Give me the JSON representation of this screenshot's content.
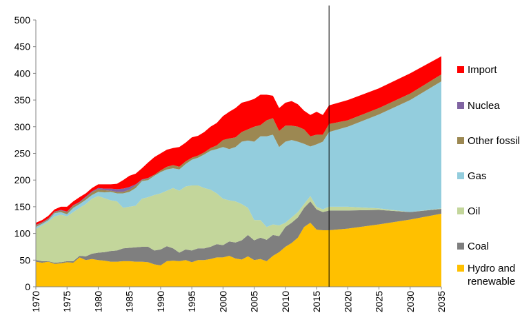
{
  "chart_data": {
    "type": "stacked_area",
    "x": [
      1970,
      1971,
      1972,
      1973,
      1974,
      1975,
      1976,
      1977,
      1978,
      1979,
      1980,
      1981,
      1982,
      1983,
      1984,
      1985,
      1986,
      1987,
      1988,
      1989,
      1990,
      1991,
      1992,
      1993,
      1994,
      1995,
      1996,
      1997,
      1998,
      1999,
      2000,
      2001,
      2002,
      2003,
      2004,
      2005,
      2006,
      2007,
      2008,
      2009,
      2010,
      2011,
      2012,
      2013,
      2014,
      2015,
      2016,
      2017,
      2020,
      2025,
      2030,
      2035
    ],
    "series": [
      {
        "name": "Hydro and renewable",
        "color": "#ffc000",
        "values": [
          47,
          45,
          47,
          43,
          44,
          46,
          45,
          55,
          50,
          52,
          50,
          49,
          47,
          47,
          48,
          48,
          47,
          47,
          46,
          42,
          40,
          48,
          49,
          48,
          50,
          46,
          50,
          50,
          52,
          55,
          55,
          58,
          53,
          51,
          57,
          50,
          52,
          48,
          58,
          65,
          75,
          82,
          92,
          112,
          120,
          107,
          106,
          106,
          109,
          117,
          126,
          137
        ]
      },
      {
        "name": "Coal",
        "color": "#7f7f7f",
        "values": [
          3,
          3,
          1,
          2,
          2,
          2,
          3,
          3,
          7,
          10,
          14,
          16,
          20,
          21,
          24,
          25,
          27,
          28,
          29,
          26,
          30,
          28,
          23,
          16,
          20,
          22,
          22,
          22,
          23,
          25,
          23,
          27,
          30,
          36,
          40,
          37,
          40,
          40,
          39,
          30,
          37,
          38,
          38,
          36,
          40,
          38,
          34,
          37,
          34,
          27,
          14,
          9
        ]
      },
      {
        "name": "Oil",
        "color": "#c3d69b",
        "values": [
          58,
          67,
          74,
          87,
          89,
          84,
          92,
          90,
          98,
          103,
          106,
          101,
          95,
          92,
          76,
          77,
          78,
          90,
          93,
          104,
          105,
          104,
          113,
          116,
          118,
          122,
          118,
          113,
          107,
          95,
          87,
          77,
          77,
          68,
          51,
          38,
          33,
          24,
          20,
          20,
          8,
          10,
          10,
          7,
          10,
          5,
          5,
          7,
          7,
          3,
          0,
          1
        ]
      },
      {
        "name": "Gas",
        "color": "#93cddd",
        "values": [
          4,
          3,
          3,
          6,
          5,
          4,
          8,
          7,
          8,
          7,
          8,
          11,
          16,
          15,
          27,
          28,
          33,
          33,
          32,
          36,
          40,
          40,
          37,
          40,
          42,
          48,
          52,
          63,
          73,
          83,
          97,
          96,
          102,
          117,
          126,
          147,
          157,
          170,
          168,
          147,
          152,
          145,
          132,
          113,
          93,
          117,
          127,
          140,
          150,
          176,
          210,
          238
        ]
      },
      {
        "name": "Other fossil",
        "color": "#9c8852",
        "values": [
          3,
          2,
          2,
          2,
          3,
          4,
          4,
          3,
          4,
          5,
          5,
          4,
          2,
          3,
          3,
          4,
          5,
          2,
          3,
          2,
          3,
          5,
          6,
          5,
          5,
          4,
          4,
          4,
          5,
          7,
          13,
          20,
          18,
          18,
          21,
          28,
          21,
          30,
          31,
          30,
          30,
          27,
          28,
          27,
          19,
          18,
          13,
          15,
          12,
          12,
          12,
          13
        ]
      },
      {
        "name": "Nuclea",
        "color": "#8064a2",
        "values": [
          1,
          1,
          1,
          1,
          1,
          1,
          1,
          1,
          2,
          2,
          2,
          3,
          4,
          5,
          6,
          5,
          2,
          1,
          1,
          0,
          0,
          0,
          0,
          0,
          0,
          0,
          0,
          0,
          0,
          0,
          0,
          0,
          0,
          0,
          0,
          0,
          0,
          0,
          0,
          0,
          0,
          0,
          0,
          0,
          0,
          0,
          0,
          0,
          0,
          0,
          0,
          0
        ]
      },
      {
        "name": "Import",
        "color": "#ff0000",
        "values": [
          4,
          4,
          5,
          4,
          6,
          9,
          7,
          9,
          6,
          6,
          7,
          8,
          8,
          10,
          16,
          21,
          20,
          21,
          29,
          33,
          32,
          32,
          32,
          37,
          35,
          38,
          37,
          38,
          40,
          42,
          45,
          50,
          55,
          55,
          53,
          52,
          57,
          48,
          42,
          43,
          43,
          46,
          42,
          35,
          40,
          43,
          37,
          35,
          38,
          37,
          38,
          34
        ]
      }
    ],
    "xlim": [
      1970,
      2035
    ],
    "xticks": [
      1970,
      1975,
      1980,
      1985,
      1990,
      1995,
      2000,
      2005,
      2010,
      2015,
      2020,
      2025,
      2030,
      2035
    ],
    "ylim": [
      0,
      500
    ],
    "yticks": [
      0,
      50,
      100,
      150,
      200,
      250,
      300,
      350,
      400,
      450,
      500
    ],
    "divider_x": 2017,
    "legend": "right"
  }
}
